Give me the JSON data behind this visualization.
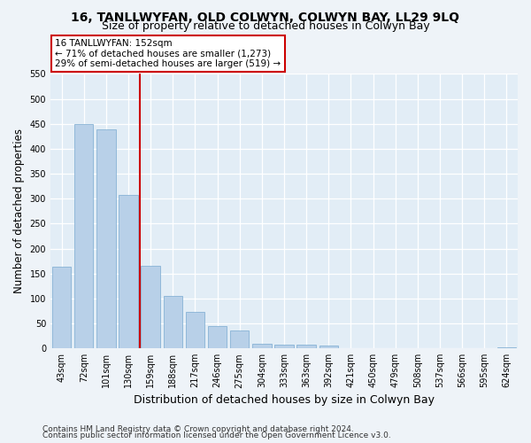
{
  "title": "16, TANLLWYFAN, OLD COLWYN, COLWYN BAY, LL29 9LQ",
  "subtitle": "Size of property relative to detached houses in Colwyn Bay",
  "xlabel": "Distribution of detached houses by size in Colwyn Bay",
  "ylabel": "Number of detached properties",
  "categories": [
    "43sqm",
    "72sqm",
    "101sqm",
    "130sqm",
    "159sqm",
    "188sqm",
    "217sqm",
    "246sqm",
    "275sqm",
    "304sqm",
    "333sqm",
    "363sqm",
    "392sqm",
    "421sqm",
    "450sqm",
    "479sqm",
    "508sqm",
    "537sqm",
    "566sqm",
    "595sqm",
    "624sqm"
  ],
  "values": [
    163,
    450,
    438,
    307,
    165,
    105,
    73,
    44,
    35,
    9,
    7,
    7,
    6,
    0,
    0,
    0,
    0,
    0,
    0,
    0,
    3
  ],
  "bar_color": "#b8d0e8",
  "bar_edgecolor": "#7aaad0",
  "vline_color": "#cc0000",
  "annotation_line1": "16 TANLLWYFAN: 152sqm",
  "annotation_line2": "← 71% of detached houses are smaller (1,273)",
  "annotation_line3": "29% of semi-detached houses are larger (519) →",
  "ylim_max": 550,
  "yticks": [
    0,
    50,
    100,
    150,
    200,
    250,
    300,
    350,
    400,
    450,
    500,
    550
  ],
  "footer1": "Contains HM Land Registry data © Crown copyright and database right 2024.",
  "footer2": "Contains public sector information licensed under the Open Government Licence v3.0.",
  "bg_color": "#eef3f8",
  "plot_bg_color": "#e2edf6",
  "title_fontsize": 10,
  "subtitle_fontsize": 9,
  "annot_fontsize": 7.5,
  "tick_fontsize": 7,
  "ylabel_fontsize": 8.5,
  "xlabel_fontsize": 9,
  "footer_fontsize": 6.5,
  "vline_xindex": 3.5
}
